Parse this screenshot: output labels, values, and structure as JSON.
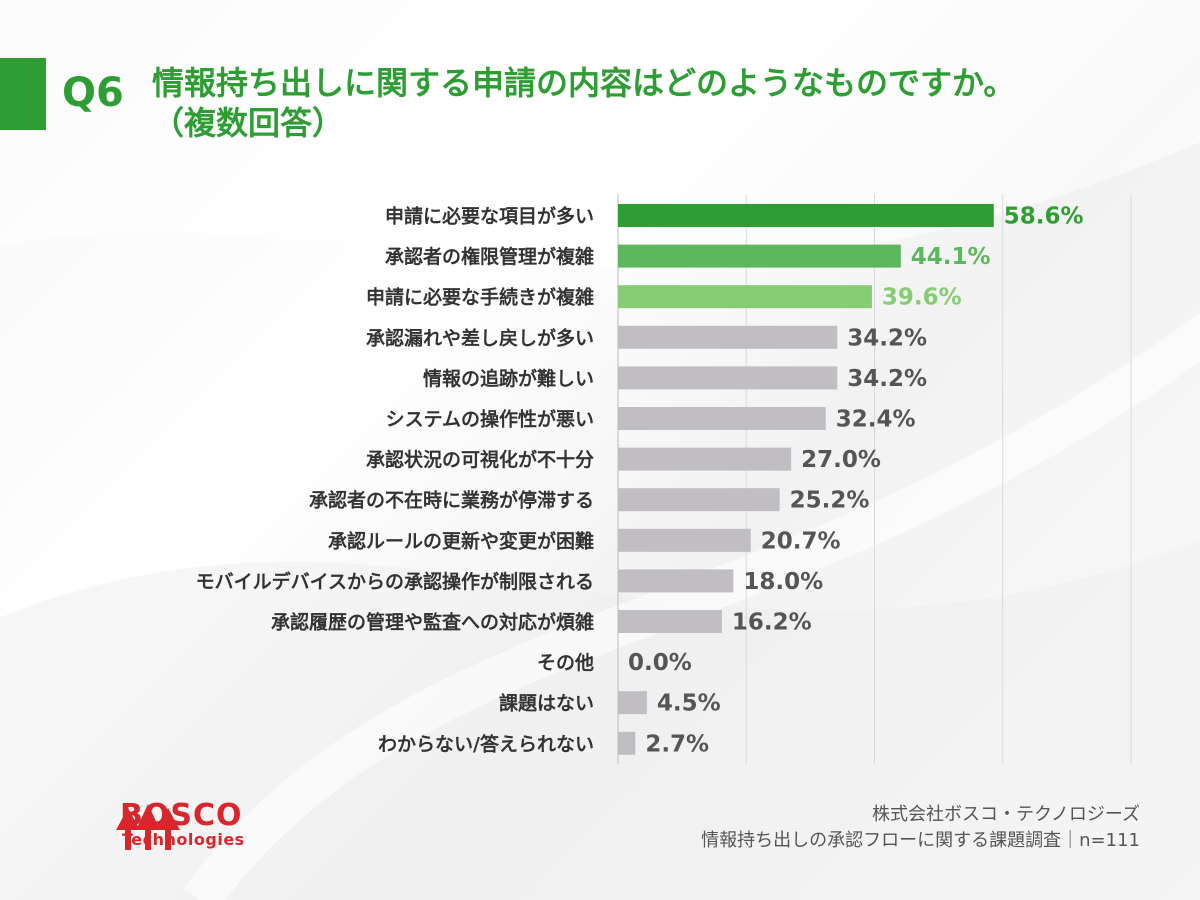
{
  "header": {
    "question_no": "Q6",
    "title_line1": "情報持ち出しに関する申請の内容はどのようなものですか。",
    "title_line2": "（複数回答）"
  },
  "chart_data": {
    "type": "bar",
    "orientation": "horizontal",
    "categories": [
      "申請に必要な項目が多い",
      "承認者の権限管理が複雑",
      "申請に必要な手続きが複雑",
      "承認漏れや差し戻しが多い",
      "情報の追跡が難しい",
      "システムの操作性が悪い",
      "承認状況の可視化が不十分",
      "承認者の不在時に業務が停滞する",
      "承認ルールの更新や変更が困難",
      "モバイルデバイスからの承認操作が制限される",
      "承認履歴の管理や監査への対応が煩雑",
      "その他",
      "課題はない",
      "わからない/答えられない"
    ],
    "values": [
      58.6,
      44.1,
      39.6,
      34.2,
      34.2,
      32.4,
      27.0,
      25.2,
      20.7,
      18.0,
      16.2,
      0.0,
      4.5,
      2.7
    ],
    "value_labels": [
      "58.6%",
      "44.1%",
      "39.6%",
      "34.2%",
      "34.2%",
      "32.4%",
      "27.0%",
      "25.2%",
      "20.7%",
      "18.0%",
      "16.2%",
      "0.0%",
      "4.5%",
      "2.7%"
    ],
    "bar_colors": [
      "#2e9e34",
      "#5cb85c",
      "#86cc73",
      "#c0bec2",
      "#c0bec2",
      "#c0bec2",
      "#c0bec2",
      "#c0bec2",
      "#c0bec2",
      "#c0bec2",
      "#c0bec2",
      "#c0bec2",
      "#c0bec2",
      "#c0bec2"
    ],
    "label_colors": [
      "#2e9e34",
      "#5cb85c",
      "#86cc73",
      "#555555",
      "#555555",
      "#555555",
      "#555555",
      "#555555",
      "#555555",
      "#555555",
      "#555555",
      "#555555",
      "#555555",
      "#555555"
    ],
    "xlim": [
      0,
      80
    ],
    "grid": true,
    "gridline_interval": 20
  },
  "logo": {
    "name": "BOSCO",
    "sub": "Technologies",
    "color": "#d8262d"
  },
  "footer": {
    "company": "株式会社ボスコ・テクノロジーズ",
    "survey": "情報持ち出しの承認フローに関する課題調査｜n=111"
  }
}
